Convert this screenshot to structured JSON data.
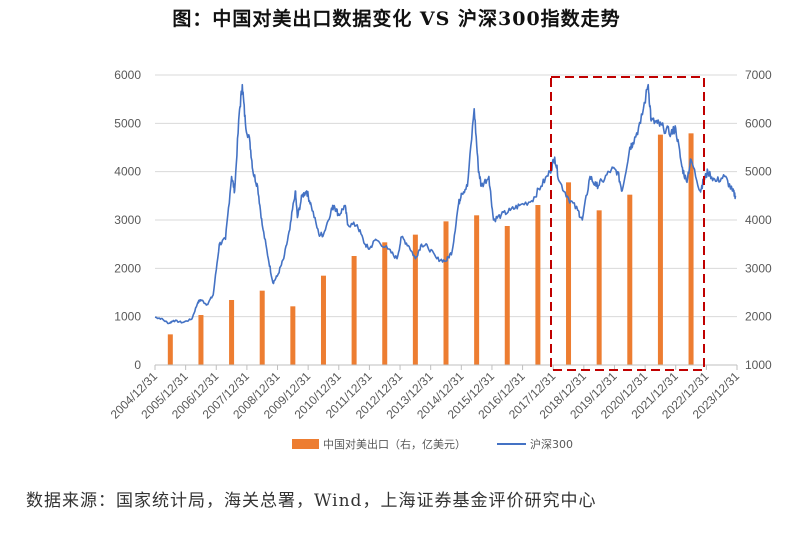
{
  "title": "图：中国对美出口数据变化 VS 沪深300指数走势",
  "source": "数据来源：国家统计局，海关总署，Wind，上海证券基金评价研究中心",
  "chart_data": {
    "type": "bar+line",
    "title": "图：中国对美出口数据变化 VS 沪深300指数走势",
    "x_tick_labels": [
      "2004/12/31",
      "2005/12/31",
      "2006/12/31",
      "2007/12/31",
      "2008/12/31",
      "2009/12/31",
      "2010/12/31",
      "2011/12/31",
      "2012/12/31",
      "2013/12/31",
      "2014/12/31",
      "2015/12/31",
      "2016/12/31",
      "2017/12/31",
      "2018/12/31",
      "2019/12/31",
      "2020/12/31",
      "2021/12/31",
      "2022/12/31",
      "2023/12/31"
    ],
    "left_axis": {
      "ticks": [
        "0",
        "1000",
        "2000",
        "3000",
        "4000",
        "5000",
        "6000"
      ],
      "ylim": [
        0,
        6000
      ]
    },
    "right_axis": {
      "ticks": [
        "1000",
        "2000",
        "3000",
        "4000",
        "5000",
        "6000",
        "7000"
      ],
      "ylim": [
        1000,
        7000
      ]
    },
    "grid": true,
    "legend_position": "bottom",
    "series": [
      {
        "name": "中国对美出口（右，亿美元）",
        "type": "bar",
        "axis": "right",
        "color": "#ED7D31",
        "years": [
          2005,
          2006,
          2007,
          2008,
          2009,
          2010,
          2011,
          2012,
          2013,
          2014,
          2015,
          2016,
          2017,
          2018,
          2019,
          2020,
          2021,
          2022
        ],
        "values": [
          1634,
          2034,
          2345,
          2538,
          2214,
          2848,
          3255,
          3538,
          3697,
          3972,
          4097,
          3876,
          4310,
          4779,
          4200,
          4524,
          5766,
          5793
        ]
      },
      {
        "name": "沪深300",
        "type": "line",
        "axis": "left",
        "color": "#4472C4",
        "x": [
          2005.0,
          2005.2,
          2005.45,
          2005.6,
          2005.9,
          2006.2,
          2006.4,
          2006.5,
          2006.7,
          2006.9,
          2007.1,
          2007.3,
          2007.5,
          2007.6,
          2007.75,
          2007.85,
          2007.95,
          2008.1,
          2008.2,
          2008.35,
          2008.5,
          2008.7,
          2008.85,
          2009.0,
          2009.2,
          2009.4,
          2009.58,
          2009.65,
          2009.8,
          2009.95,
          2010.1,
          2010.35,
          2010.5,
          2010.75,
          2010.85,
          2011.0,
          2011.2,
          2011.3,
          2011.6,
          2011.85,
          2012.0,
          2012.2,
          2012.6,
          2012.9,
          2013.05,
          2013.3,
          2013.5,
          2013.7,
          2013.9,
          2014.2,
          2014.5,
          2014.7,
          2014.9,
          2015.0,
          2015.2,
          2015.42,
          2015.55,
          2015.65,
          2015.9,
          2016.05,
          2016.3,
          2016.6,
          2016.9,
          2017.3,
          2017.6,
          2017.9,
          2018.05,
          2018.2,
          2018.5,
          2018.8,
          2018.95,
          2019.2,
          2019.4,
          2019.6,
          2019.9,
          2020.1,
          2020.25,
          2020.5,
          2020.6,
          2020.85,
          2021.1,
          2021.2,
          2021.4,
          2021.6,
          2021.85,
          2022.0,
          2022.2,
          2022.35,
          2022.5,
          2022.8,
          2022.9,
          2023.05,
          2023.3,
          2023.6,
          2023.85,
          2023.95
        ],
        "values": [
          990,
          960,
          860,
          920,
          880,
          950,
          1300,
          1350,
          1250,
          1450,
          2500,
          2600,
          3900,
          3600,
          5200,
          5800,
          5000,
          4600,
          4000,
          3700,
          2900,
          2200,
          1700,
          1850,
          2200,
          2800,
          3600,
          3050,
          3500,
          3600,
          3300,
          2700,
          2700,
          3200,
          3300,
          3100,
          3300,
          2900,
          2900,
          2500,
          2400,
          2600,
          2400,
          2200,
          2650,
          2450,
          2200,
          2500,
          2450,
          2200,
          2150,
          2350,
          3300,
          3550,
          3700,
          5300,
          4100,
          3700,
          3900,
          3000,
          3100,
          3200,
          3300,
          3400,
          3700,
          4000,
          4300,
          3800,
          3450,
          3200,
          3000,
          3900,
          3700,
          3800,
          4050,
          4000,
          3600,
          4500,
          4600,
          5000,
          5800,
          5050,
          5000,
          4900,
          4800,
          4900,
          4100,
          3800,
          4250,
          3600,
          3800,
          4000,
          3800,
          3900,
          3600,
          3500
        ]
      }
    ],
    "annotation": "red dashed box highlighting 2018–2022"
  }
}
